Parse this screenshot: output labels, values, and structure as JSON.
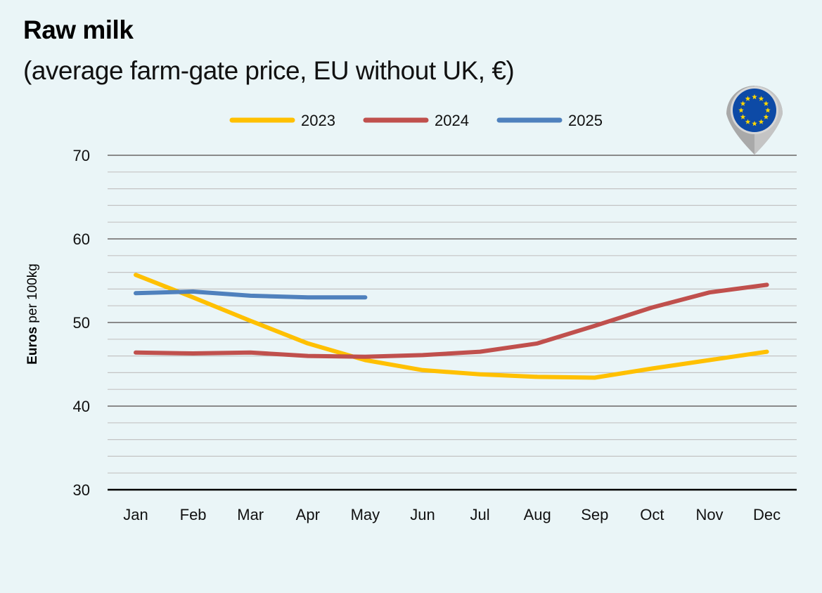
{
  "header": {
    "title": "Raw milk",
    "subtitle": "(average farm-gate price, EU without UK, €)"
  },
  "badge": {
    "icon": "eu-flag-map-pin-icon",
    "flag_color": "#0d4aa6",
    "star_color": "#ffd700",
    "pin_color": "#b8b8b8"
  },
  "chart_data": {
    "type": "line",
    "title": "Raw milk",
    "subtitle": "(average farm-gate price, EU without UK, €)",
    "xlabel": "",
    "ylabel_bold": "Euros",
    "ylabel_rest": " per 100kg",
    "ylabel": "Euros per 100kg",
    "ylim": [
      30,
      70
    ],
    "yticks": [
      30,
      40,
      50,
      60,
      70
    ],
    "minor_grid_step": 2,
    "grid": true,
    "legend_position": "top-center",
    "categories": [
      "Jan",
      "Feb",
      "Mar",
      "Apr",
      "May",
      "Jun",
      "Jul",
      "Aug",
      "Sep",
      "Oct",
      "Nov",
      "Dec"
    ],
    "series": [
      {
        "name": "2023",
        "color": "#ffc000",
        "values": [
          55.7,
          53.0,
          50.2,
          47.5,
          45.5,
          44.3,
          43.8,
          43.5,
          43.4,
          44.5,
          45.5,
          46.5
        ]
      },
      {
        "name": "2024",
        "color": "#c0504d",
        "values": [
          46.4,
          46.3,
          46.4,
          46.0,
          45.9,
          46.1,
          46.5,
          47.5,
          49.6,
          51.8,
          53.6,
          54.5
        ]
      },
      {
        "name": "2025",
        "color": "#4f81bd",
        "values": [
          53.5,
          53.7,
          53.2,
          53.0,
          53.0
        ]
      }
    ]
  }
}
